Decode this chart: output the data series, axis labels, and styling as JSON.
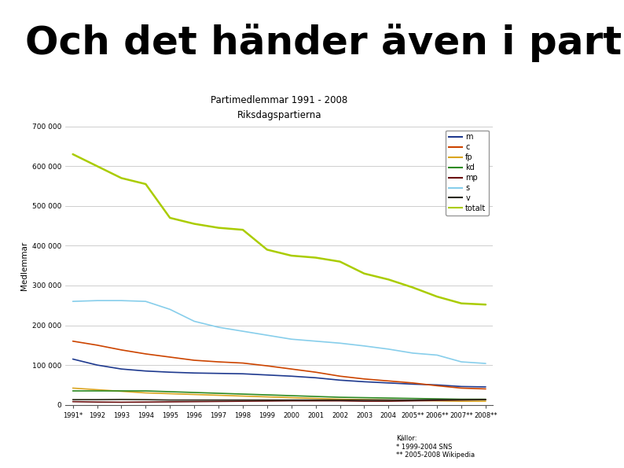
{
  "title": "Partimedlemmar 1991 - 2008",
  "subtitle": "Riksdagspartierna",
  "main_title": "Och det händer även i partierna",
  "ylabel": "Medlemmar",
  "footer_title": "Källor:",
  "footer_line1": "* 1999-2004 SNS",
  "footer_line2": "** 2005-2008 Wikipedia",
  "years": [
    "1991*",
    "1992",
    "1993",
    "1994",
    "1995",
    "1996",
    "1997",
    "1998",
    "1999",
    "2000",
    "2001",
    "2002",
    "2003",
    "2004",
    "2005**",
    "2006**",
    "2007**",
    "2008**"
  ],
  "series": {
    "m": [
      115000,
      100000,
      90000,
      85000,
      82000,
      80000,
      79000,
      78000,
      75000,
      72000,
      68000,
      62000,
      58000,
      55000,
      52000,
      50000,
      46000,
      45000
    ],
    "c": [
      160000,
      150000,
      138000,
      128000,
      120000,
      112000,
      108000,
      105000,
      98000,
      90000,
      82000,
      72000,
      65000,
      60000,
      55000,
      48000,
      42000,
      40000
    ],
    "fp": [
      42000,
      38000,
      34000,
      30000,
      28000,
      26000,
      24000,
      22000,
      20000,
      18000,
      16000,
      14000,
      13000,
      12000,
      11000,
      10000,
      9000,
      9000
    ],
    "kd": [
      35000,
      35000,
      35000,
      35000,
      33000,
      31000,
      29000,
      27000,
      25000,
      23000,
      21000,
      19000,
      18000,
      17000,
      16000,
      15000,
      14000,
      14000
    ],
    "mp": [
      8000,
      7000,
      6500,
      7000,
      7500,
      8000,
      8500,
      9000,
      9500,
      10000,
      10000,
      10000,
      9000,
      9000,
      10000,
      11000,
      12000,
      13000
    ],
    "s": [
      260000,
      262000,
      262000,
      260000,
      240000,
      210000,
      195000,
      185000,
      175000,
      165000,
      160000,
      155000,
      148000,
      140000,
      130000,
      125000,
      108000,
      104000
    ],
    "v": [
      13000,
      13000,
      13500,
      13000,
      12000,
      12000,
      12000,
      12000,
      12000,
      12000,
      12000,
      12000,
      12000,
      12000,
      12000,
      13000,
      13000,
      13000
    ],
    "totalt": [
      630000,
      600000,
      570000,
      555000,
      470000,
      455000,
      445000,
      440000,
      390000,
      375000,
      370000,
      360000,
      330000,
      315000,
      295000,
      272000,
      255000,
      252000
    ]
  },
  "colors": {
    "m": "#1F3A8F",
    "c": "#CC4400",
    "fp": "#DAA520",
    "kd": "#2E8B22",
    "mp": "#6B1010",
    "s": "#87CEEB",
    "v": "#2A2A1A",
    "totalt": "#AACC00"
  },
  "ylim": [
    0,
    700000
  ],
  "yticks": [
    0,
    100000,
    200000,
    300000,
    400000,
    500000,
    600000,
    700000
  ],
  "ytick_labels": [
    "0",
    "100 000",
    "200 000",
    "300 000",
    "400 000",
    "500 000",
    "600 000",
    "700 000"
  ],
  "background_color": "#ffffff",
  "grid_color": "#BBBBBB"
}
